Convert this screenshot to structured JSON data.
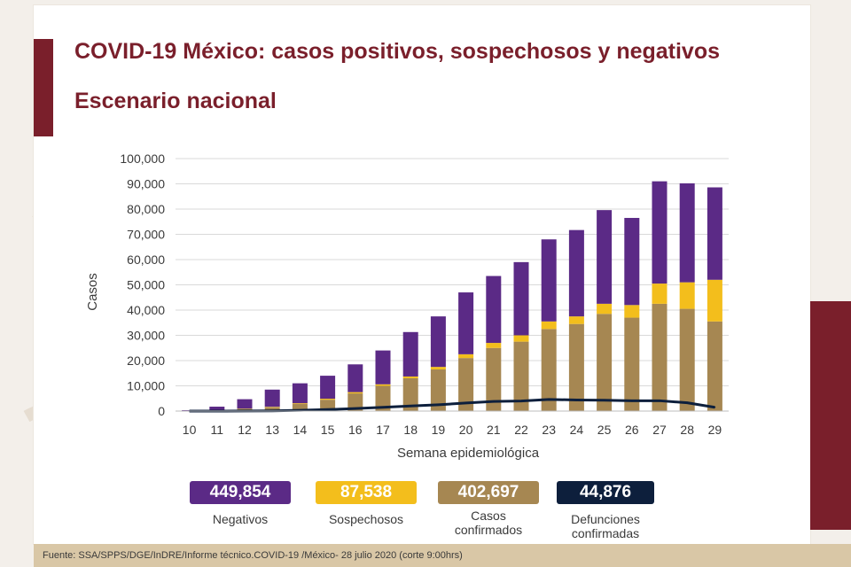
{
  "title": "COVID-19 México: casos positivos, sospechosos y negativos",
  "subtitle": "Escenario nacional",
  "colors": {
    "negativos": "#5b2a86",
    "sospechosos": "#f3be1c",
    "confirmados": "#a68752",
    "defunciones": "#0d1f3c",
    "accent": "#7a1f2b"
  },
  "chart_data": {
    "type": "bar",
    "stacked": true,
    "xlabel": "Semana epidemiológica",
    "ylabel": "Casos",
    "ylim": [
      0,
      100000
    ],
    "yticks": [
      0,
      10000,
      20000,
      30000,
      40000,
      50000,
      60000,
      70000,
      80000,
      90000,
      100000
    ],
    "ytick_labels": [
      "0",
      "10,000",
      "20,000",
      "30,000",
      "40,000",
      "50,000",
      "60,000",
      "70,000",
      "80,000",
      "90,000",
      "100,000"
    ],
    "grid": true,
    "categories": [
      "10",
      "11",
      "12",
      "13",
      "14",
      "15",
      "16",
      "17",
      "18",
      "19",
      "20",
      "21",
      "22",
      "23",
      "24",
      "25",
      "26",
      "27",
      "28",
      "29"
    ],
    "series": [
      {
        "name": "Casos confirmados",
        "values": [
          30,
          300,
          900,
          1500,
          2800,
          4500,
          7000,
          10000,
          13000,
          16500,
          21000,
          25000,
          27500,
          32500,
          34500,
          38500,
          37000,
          42500,
          40500,
          35500
        ]
      },
      {
        "name": "Sospechosos",
        "values": [
          10,
          50,
          100,
          200,
          300,
          400,
          500,
          600,
          700,
          1000,
          1500,
          2000,
          2500,
          3000,
          3000,
          4000,
          5000,
          8000,
          10500,
          16500
        ]
      },
      {
        "name": "Negativos",
        "values": [
          300,
          1400,
          3700,
          6800,
          7900,
          9100,
          11000,
          13400,
          17600,
          20000,
          24500,
          26500,
          29000,
          32500,
          34200,
          37100,
          34500,
          40500,
          39200,
          36600
        ]
      },
      {
        "name": "Defunciones confirmadas",
        "type": "line",
        "values": [
          0,
          10,
          30,
          100,
          300,
          600,
          1000,
          1500,
          2000,
          2500,
          3200,
          3800,
          4000,
          4600,
          4400,
          4300,
          4100,
          4100,
          3300,
          1500
        ]
      }
    ]
  },
  "legend": [
    {
      "value": "449,854",
      "label": "Negativos"
    },
    {
      "value": "87,538",
      "label": "Sospechosos"
    },
    {
      "value": "402,697",
      "label": "Casos\nconfirmados"
    },
    {
      "value": "44,876",
      "label": "Defunciones\nconfirmadas"
    }
  ],
  "footer": "Fuente: SSA/SPPS/DGE/InDRE/Informe técnico.COVID-19 /México- 28 julio 2020 (corte 9:00hrs)"
}
